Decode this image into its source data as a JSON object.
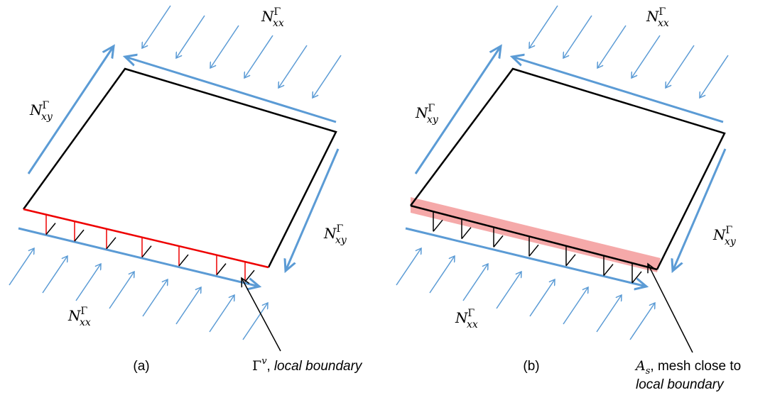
{
  "panels": [
    {
      "caption": "(a)",
      "labels": [
        {
          "base": "N",
          "sub": "xx",
          "sup": "Γ"
        },
        {
          "base": "N",
          "sub": "xy",
          "sup": "Γ"
        },
        {
          "base": "N",
          "sub": "xy",
          "sup": "Γ"
        },
        {
          "base": "N",
          "sub": "xx",
          "sup": "Γ"
        }
      ],
      "annotation": {
        "symbol": "Γ",
        "script": "v",
        "rest": ",",
        "emph": "local boundary"
      }
    },
    {
      "caption": "(b)",
      "labels": [
        {
          "base": "N",
          "sub": "xx",
          "sup": "Γ"
        },
        {
          "base": "N",
          "sub": "xy",
          "sup": "Γ"
        },
        {
          "base": "N",
          "sub": "xy",
          "sup": "Γ"
        },
        {
          "base": "N",
          "sub": "xx",
          "sup": "Γ"
        }
      ],
      "annotation": {
        "symbol": "A",
        "script": "s",
        "rest": ", mesh close to",
        "emph": "local boundary"
      }
    }
  ]
}
